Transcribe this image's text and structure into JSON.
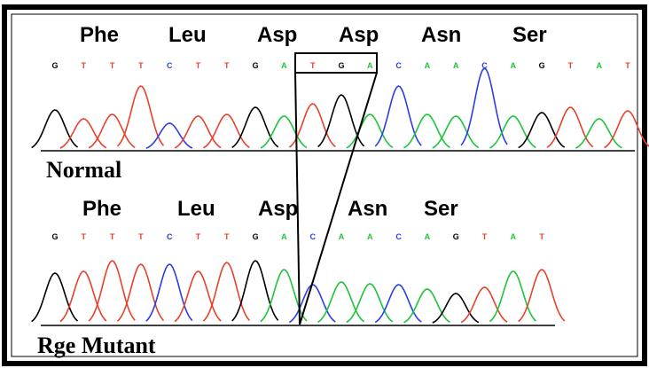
{
  "panels": [
    {
      "label": "Normal",
      "amino_acids": [
        "Phe",
        "Leu",
        "Asp",
        "Asp",
        "Asn",
        "Ser"
      ],
      "bases": [
        {
          "base": "G",
          "color": "#000000"
        },
        {
          "base": "T",
          "color": "#e8402a"
        },
        {
          "base": "T",
          "color": "#e8402a"
        },
        {
          "base": "T",
          "color": "#e8402a"
        },
        {
          "base": "C",
          "color": "#2a3ee8"
        },
        {
          "base": "T",
          "color": "#e8402a"
        },
        {
          "base": "T",
          "color": "#e8402a"
        },
        {
          "base": "G",
          "color": "#000000"
        },
        {
          "base": "A",
          "color": "#1cc43a"
        },
        {
          "base": "T",
          "color": "#e8402a"
        },
        {
          "base": "G",
          "color": "#000000"
        },
        {
          "base": "A",
          "color": "#1cc43a"
        },
        {
          "base": "C",
          "color": "#2a3ee8"
        },
        {
          "base": "A",
          "color": "#1cc43a"
        },
        {
          "base": "A",
          "color": "#1cc43a"
        },
        {
          "base": "C",
          "color": "#2a3ee8"
        },
        {
          "base": "A",
          "color": "#1cc43a"
        },
        {
          "base": "G",
          "color": "#000000"
        },
        {
          "base": "T",
          "color": "#e8402a"
        },
        {
          "base": "A",
          "color": "#1cc43a"
        },
        {
          "base": "T",
          "color": "#e8402a"
        }
      ]
    },
    {
      "label": "Rge Mutant",
      "amino_acids": [
        "Phe",
        "Leu",
        "Asp",
        "Asn",
        "Ser"
      ],
      "bases": [
        {
          "base": "G",
          "color": "#000000"
        },
        {
          "base": "T",
          "color": "#e8402a"
        },
        {
          "base": "T",
          "color": "#e8402a"
        },
        {
          "base": "T",
          "color": "#e8402a"
        },
        {
          "base": "C",
          "color": "#2a3ee8"
        },
        {
          "base": "T",
          "color": "#e8402a"
        },
        {
          "base": "T",
          "color": "#e8402a"
        },
        {
          "base": "G",
          "color": "#000000"
        },
        {
          "base": "A",
          "color": "#1cc43a"
        },
        {
          "base": "C",
          "color": "#2a3ee8"
        },
        {
          "base": "A",
          "color": "#1cc43a"
        },
        {
          "base": "A",
          "color": "#1cc43a"
        },
        {
          "base": "C",
          "color": "#2a3ee8"
        },
        {
          "base": "A",
          "color": "#1cc43a"
        },
        {
          "base": "G",
          "color": "#000000"
        },
        {
          "base": "T",
          "color": "#e8402a"
        },
        {
          "base": "A",
          "color": "#1cc43a"
        },
        {
          "base": "T",
          "color": "#e8402a"
        }
      ]
    }
  ]
}
